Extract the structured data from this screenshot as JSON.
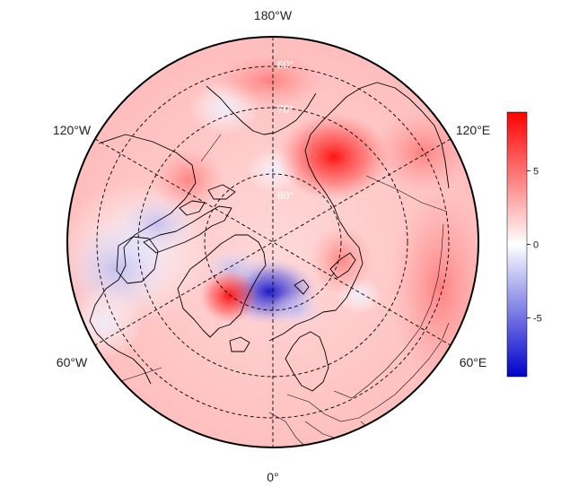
{
  "map": {
    "projection": "north-polar-stereographic",
    "field": "anomaly",
    "colormap": {
      "low": "#0000cc",
      "mid": "#ffffff",
      "high": "#ff0000"
    },
    "value_range": [
      -9,
      9
    ],
    "grid_style": "dashed",
    "coastlines": true,
    "country_borders": true,
    "longitude_labels": {
      "top": "180°W",
      "upper_left": "120°W",
      "upper_right": "120°E",
      "lower_left": "60°W",
      "lower_right": "60°E",
      "bottom": "0°"
    },
    "latitude_labels": [
      "60°",
      "70°",
      "80°"
    ]
  },
  "colorbar": {
    "ticks": [
      {
        "value": 5,
        "label": "5"
      },
      {
        "value": 0,
        "label": "0"
      },
      {
        "value": -5,
        "label": "-5"
      }
    ]
  }
}
